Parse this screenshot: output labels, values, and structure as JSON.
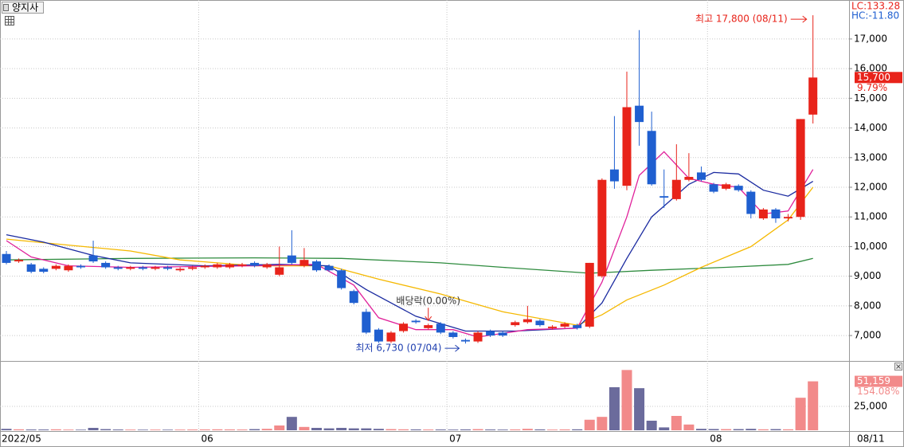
{
  "header": {
    "stock_name": "양지사",
    "lc": "LC:133.28",
    "hc": "HC:-11.80"
  },
  "chart_data": [
    {
      "type": "candlestick",
      "categories": [
        "2022/05",
        null,
        null,
        null,
        null,
        null,
        null,
        null,
        null,
        null,
        null,
        null,
        null,
        null,
        null,
        null,
        "06",
        null,
        null,
        null,
        null,
        null,
        null,
        null,
        null,
        null,
        null,
        null,
        null,
        null,
        null,
        null,
        null,
        null,
        null,
        null,
        "07",
        null,
        null,
        null,
        null,
        null,
        null,
        null,
        null,
        null,
        null,
        null,
        null,
        null,
        null,
        null,
        null,
        null,
        null,
        null,
        null,
        "08",
        null,
        null,
        null,
        null,
        null,
        null,
        null,
        null
      ],
      "open": [
        9750,
        9500,
        9400,
        9250,
        9250,
        9200,
        9350,
        9700,
        9450,
        9300,
        9250,
        9300,
        9250,
        9300,
        9200,
        9250,
        9300,
        9300,
        9300,
        9350,
        9450,
        9300,
        9050,
        9700,
        9350,
        9500,
        9350,
        9200,
        8500,
        7800,
        7200,
        6800,
        7150,
        7500,
        7250,
        7400,
        7100,
        6850,
        6800,
        7150,
        7100,
        7350,
        7450,
        7500,
        7250,
        7300,
        7350,
        7300,
        9000,
        12600,
        12050,
        14750,
        13900,
        11700,
        11600,
        12250,
        12500,
        12100,
        11950,
        12050,
        11850,
        10950,
        11250,
        10950,
        11000,
        14450
      ],
      "high": [
        9850,
        9600,
        9450,
        9300,
        9400,
        9400,
        9400,
        10200,
        9500,
        9350,
        9350,
        9350,
        9350,
        9350,
        9300,
        9350,
        9400,
        9450,
        9450,
        9450,
        9500,
        9450,
        10000,
        10550,
        9950,
        9550,
        9400,
        9250,
        8550,
        7900,
        7250,
        7150,
        7450,
        7550,
        7400,
        7450,
        7150,
        6900,
        7150,
        7200,
        7150,
        7500,
        8000,
        7550,
        7350,
        7450,
        7400,
        9450,
        12300,
        14400,
        15900,
        17300,
        14550,
        12600,
        13450,
        13150,
        12700,
        12150,
        12150,
        12100,
        11900,
        11300,
        11300,
        11100,
        14300,
        17800
      ],
      "low": [
        9400,
        9450,
        9100,
        9100,
        9200,
        9150,
        9250,
        9450,
        9250,
        9200,
        9200,
        9200,
        9200,
        9200,
        9150,
        9200,
        9250,
        9250,
        9250,
        9300,
        9300,
        9250,
        9000,
        9400,
        9300,
        9150,
        9150,
        8550,
        8050,
        7050,
        6750,
        6750,
        7100,
        7400,
        7200,
        7050,
        6900,
        6730,
        6750,
        6950,
        6950,
        7300,
        7400,
        7300,
        7200,
        7250,
        7200,
        7250,
        8950,
        11950,
        11900,
        13400,
        12050,
        11300,
        11550,
        12200,
        12200,
        11800,
        11900,
        11850,
        10950,
        10900,
        10800,
        10850,
        10900,
        14150
      ],
      "close": [
        9450,
        9550,
        9150,
        9150,
        9350,
        9350,
        9300,
        9500,
        9300,
        9250,
        9300,
        9250,
        9300,
        9250,
        9250,
        9300,
        9350,
        9400,
        9400,
        9400,
        9350,
        9400,
        9300,
        9450,
        9550,
        9200,
        9200,
        8600,
        8100,
        7100,
        6800,
        7100,
        7400,
        7450,
        7350,
        7100,
        6950,
        6800,
        7100,
        7000,
        7000,
        7450,
        7550,
        7350,
        7300,
        7400,
        7250,
        9450,
        12250,
        12200,
        14700,
        14200,
        12100,
        11650,
        12250,
        12350,
        12250,
        11850,
        12100,
        11900,
        11100,
        11250,
        10950,
        11000,
        14300,
        15700
      ],
      "up_color": "#e8231a",
      "down_color": "#1f5fd0",
      "lines": [
        {
          "color": "#2e8b3e",
          "x": [
            0,
            10,
            20,
            27,
            35,
            40,
            47,
            52,
            58,
            63,
            65
          ],
          "values": [
            9550,
            9600,
            9620,
            9600,
            9450,
            9300,
            9100,
            9200,
            9300,
            9400,
            9600
          ]
        },
        {
          "color": "#f5b800",
          "x": [
            0,
            5,
            10,
            14,
            20,
            26,
            30,
            35,
            40,
            46,
            48,
            50,
            53,
            56,
            60,
            63,
            65
          ],
          "values": [
            10250,
            10050,
            9850,
            9550,
            9350,
            9350,
            8900,
            8400,
            7800,
            7350,
            7700,
            8200,
            8700,
            9300,
            10000,
            10900,
            12000
          ]
        },
        {
          "color": "#1a2aa0",
          "x": [
            0,
            3,
            7,
            10,
            16,
            22,
            26,
            29,
            33,
            37,
            41,
            46,
            48,
            50,
            52,
            55,
            57,
            59,
            61,
            63,
            65
          ],
          "values": [
            10400,
            10150,
            9700,
            9450,
            9350,
            9400,
            9350,
            8550,
            7650,
            7150,
            7150,
            7250,
            8100,
            9600,
            11000,
            12100,
            12500,
            12450,
            11900,
            11700,
            12200
          ]
        },
        {
          "color": "#e0209a",
          "x": [
            0,
            2,
            5,
            10,
            20,
            25,
            28,
            30,
            33,
            36,
            38,
            42,
            46,
            48,
            50,
            51,
            53,
            55,
            57,
            59,
            61,
            63,
            65
          ],
          "values": [
            10200,
            9650,
            9350,
            9300,
            9350,
            9400,
            8700,
            7600,
            7200,
            7200,
            6950,
            7200,
            7250,
            8800,
            11000,
            12400,
            13200,
            12300,
            12100,
            12000,
            11100,
            11200,
            12600
          ]
        }
      ],
      "ylim": [
        6170,
        18180
      ],
      "yticks": [
        {
          "value": 7000,
          "label": "7,000"
        },
        {
          "value": 8000,
          "label": "8,000"
        },
        {
          "value": 9000,
          "label": "9,000"
        },
        {
          "value": 10000,
          "label": "10,000"
        },
        {
          "value": 11000,
          "label": "11,000"
        },
        {
          "value": 12000,
          "label": "12,000"
        },
        {
          "value": 13000,
          "label": "13,000"
        },
        {
          "value": 14000,
          "label": "14,000"
        },
        {
          "value": 15000,
          "label": "15,000"
        },
        {
          "value": 16000,
          "label": "16,000"
        },
        {
          "value": 17000,
          "label": "17,000"
        }
      ],
      "last_label": "15,700",
      "last_change": "9.79%",
      "annotations": {
        "high": "최고 17,800 (08/11)",
        "low": "최저 6,730 (07/04)",
        "dividend": "배당락(0.00%)"
      },
      "grid": true
    },
    {
      "type": "bar",
      "values": [
        1500,
        1000,
        800,
        800,
        1000,
        700,
        600,
        2500,
        1200,
        800,
        700,
        600,
        700,
        600,
        700,
        800,
        900,
        1000,
        900,
        800,
        1200,
        1500,
        5000,
        14000,
        3500,
        2500,
        2000,
        2500,
        2000,
        2000,
        1500,
        1200,
        1000,
        900,
        800,
        800,
        700,
        900,
        1200,
        800,
        700,
        900,
        1500,
        900,
        700,
        900,
        1000,
        11000,
        14000,
        45000,
        63000,
        44000,
        10000,
        3000,
        15000,
        6000,
        1500,
        1300,
        1200,
        1200,
        1500,
        1000,
        1200,
        1000,
        34000,
        51159
      ],
      "up_color": "#f28a8a",
      "down_color": "#6b6b9c",
      "ylim": [
        0,
        70800
      ],
      "yticks": [
        {
          "value": 25000,
          "label": "25,000"
        }
      ],
      "last_label": "51,159",
      "last_change": "154.08%",
      "last_date": "08/11"
    }
  ]
}
